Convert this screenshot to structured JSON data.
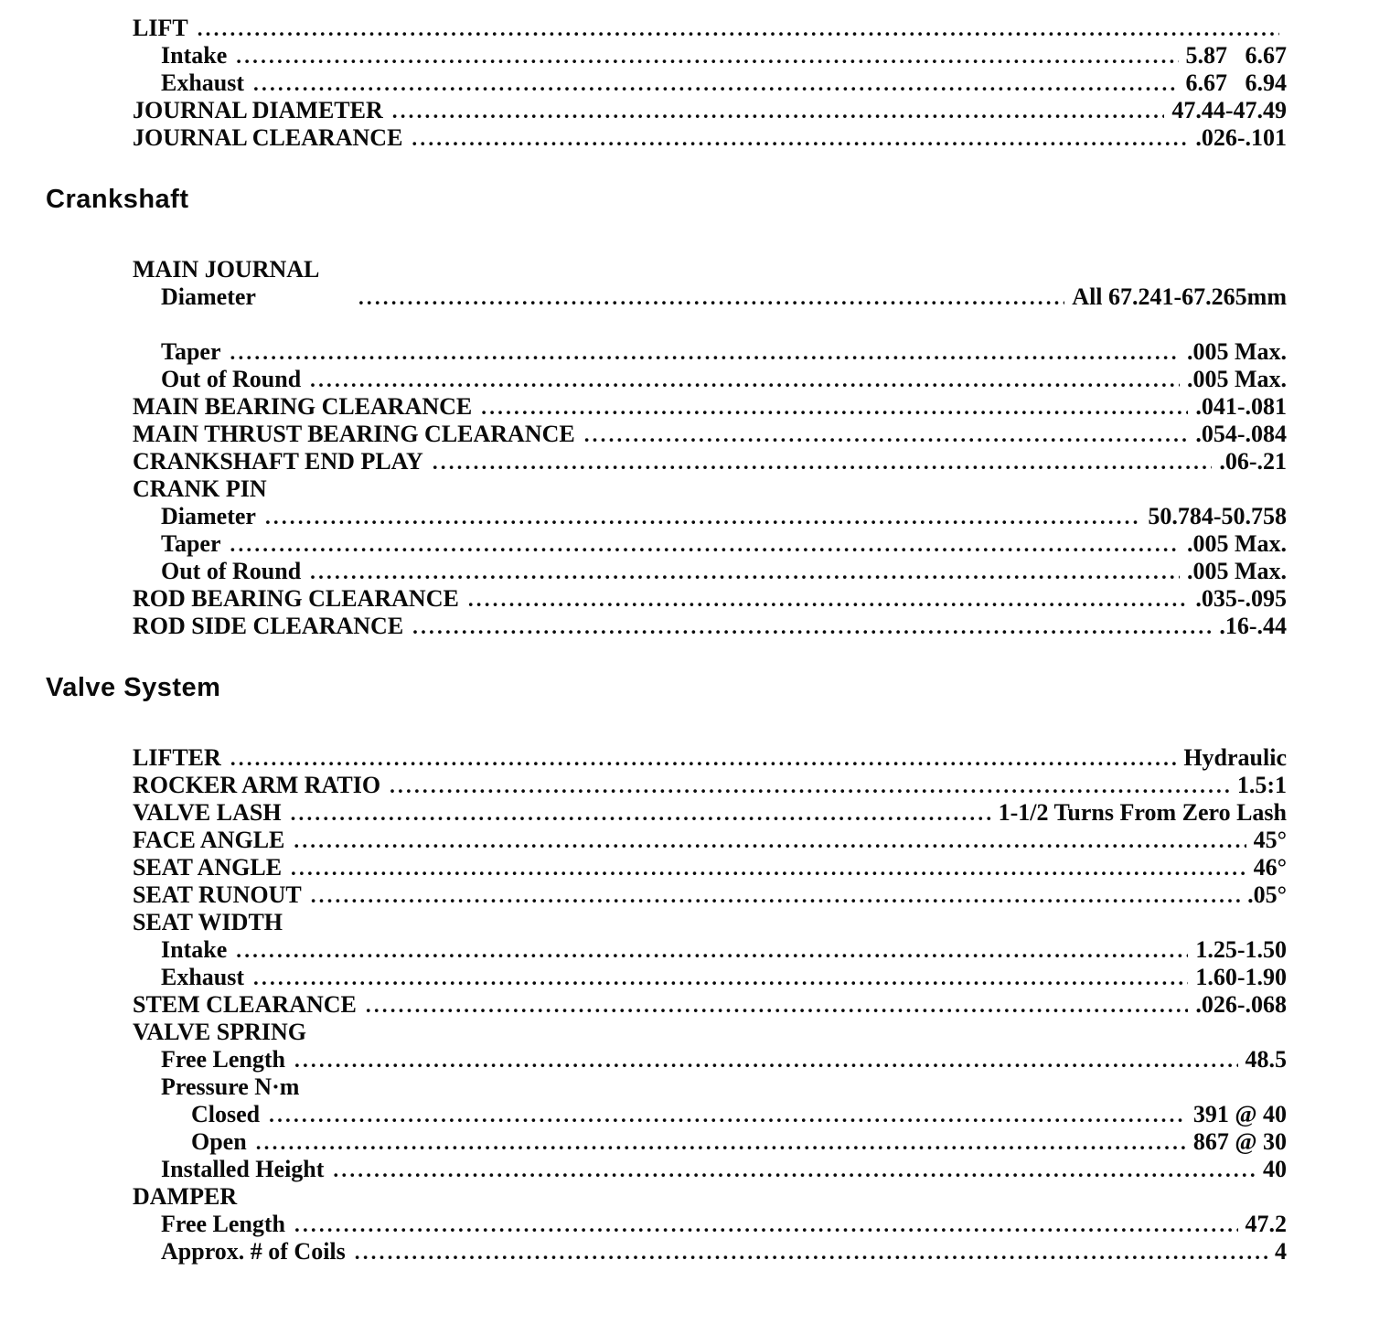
{
  "page": {
    "background_color": "#ffffff",
    "text_color": "#0a0a0a",
    "kind": "engine-specifications-scan"
  },
  "sections": [
    {
      "heading": null,
      "rows": [
        {
          "label": "LIFT",
          "value": "",
          "indent": 1,
          "leader": true
        },
        {
          "label": "Intake",
          "value": "5.87   6.67",
          "indent": 2,
          "leader": true
        },
        {
          "label": "Exhaust",
          "value": "6.67   6.94",
          "indent": 2,
          "leader": true
        },
        {
          "label": "JOURNAL DIAMETER",
          "value": "47.44-47.49",
          "indent": 1,
          "leader": true
        },
        {
          "label": "JOURNAL CLEARANCE",
          "value": ".026-.101",
          "indent": 1,
          "leader": true
        }
      ]
    },
    {
      "heading": "Crankshaft",
      "rows": [
        {
          "label": "MAIN JOURNAL",
          "value": "",
          "indent": 1,
          "leader": false
        },
        {
          "label": "Diameter",
          "value": "All 67.241-67.265mm",
          "indent": 2,
          "leader": true,
          "wide_gap": true
        },
        {
          "spacer": true
        },
        {
          "label": "Taper",
          "value": ".005 Max.",
          "indent": 2,
          "leader": true
        },
        {
          "label": "Out of Round",
          "value": ".005 Max.",
          "indent": 2,
          "leader": true
        },
        {
          "label": "MAIN BEARING CLEARANCE",
          "value": ".041-.081",
          "indent": 1,
          "leader": true
        },
        {
          "label": "MAIN THRUST BEARING CLEARANCE",
          "value": ".054-.084",
          "indent": 1,
          "leader": true
        },
        {
          "label": "CRANKSHAFT END PLAY",
          "value": ".06-.21",
          "indent": 1,
          "leader": true
        },
        {
          "label": "CRANK PIN",
          "value": "",
          "indent": 1,
          "leader": false
        },
        {
          "label": "Diameter",
          "value": "50.784-50.758",
          "indent": 2,
          "leader": true
        },
        {
          "label": "Taper",
          "value": ".005 Max.",
          "indent": 2,
          "leader": true
        },
        {
          "label": "Out of Round",
          "value": ".005 Max.",
          "indent": 2,
          "leader": true
        },
        {
          "label": "ROD BEARING CLEARANCE",
          "value": ".035-.095",
          "indent": 1,
          "leader": true
        },
        {
          "label": "ROD SIDE CLEARANCE",
          "value": ".16-.44",
          "indent": 1,
          "leader": true
        }
      ]
    },
    {
      "heading": "Valve System",
      "rows": [
        {
          "label": "LIFTER",
          "value": "Hydraulic",
          "indent": 1,
          "leader": true
        },
        {
          "label": "ROCKER ARM RATIO",
          "value": "1.5:1",
          "indent": 1,
          "leader": true
        },
        {
          "label": "VALVE LASH",
          "value": "1-1/2 Turns From Zero Lash",
          "indent": 1,
          "leader": true
        },
        {
          "label": "FACE ANGLE",
          "value": "45°",
          "indent": 1,
          "leader": true
        },
        {
          "label": "SEAT ANGLE",
          "value": "46°",
          "indent": 1,
          "leader": true
        },
        {
          "label": "SEAT RUNOUT",
          "value": ".05°",
          "indent": 1,
          "leader": true
        },
        {
          "label": "SEAT WIDTH",
          "value": "",
          "indent": 1,
          "leader": false
        },
        {
          "label": "Intake",
          "value": "1.25-1.50",
          "indent": 2,
          "leader": true
        },
        {
          "label": "Exhaust",
          "value": "1.60-1.90",
          "indent": 2,
          "leader": true
        },
        {
          "label": "STEM CLEARANCE",
          "value": ".026-.068",
          "indent": 1,
          "leader": true
        },
        {
          "label": "VALVE SPRING",
          "value": "",
          "indent": 1,
          "leader": false
        },
        {
          "label": "Free Length",
          "value": "48.5",
          "indent": 2,
          "leader": true
        },
        {
          "label": "Pressure N·m",
          "value": "",
          "indent": 2,
          "leader": false
        },
        {
          "label": "Closed",
          "value": "391 @ 40",
          "indent": 3,
          "leader": true
        },
        {
          "label": "Open",
          "value": "867 @ 30",
          "indent": 3,
          "leader": true
        },
        {
          "label": "Installed Height",
          "value": "40",
          "indent": 2,
          "leader": true
        },
        {
          "label": "DAMPER",
          "value": "",
          "indent": 1,
          "leader": false
        },
        {
          "label": "Free Length",
          "value": "47.2",
          "indent": 2,
          "leader": true
        },
        {
          "label": "Approx. # of Coils",
          "value": "4",
          "indent": 2,
          "leader": true
        }
      ]
    }
  ]
}
